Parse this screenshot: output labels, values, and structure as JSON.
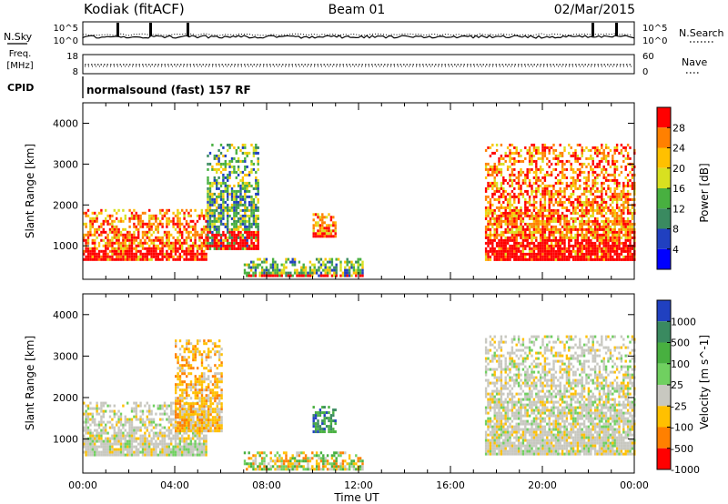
{
  "header": {
    "station": "Kodiak (fitACF)",
    "beam": "Beam 01",
    "date": "02/Mar/2015"
  },
  "noise_panel": {
    "left_label": "N.Sky",
    "right_label": "N.Search",
    "left_ticks": [
      "10^5",
      "10^0"
    ],
    "right_ticks": [
      "10^5",
      "10^0"
    ]
  },
  "freq_panel": {
    "left_label_1": "Freq.",
    "left_label_2": "[MHz]",
    "right_label": "Nave",
    "left_ticks": [
      "18",
      "8"
    ],
    "right_ticks": [
      "60",
      "0"
    ]
  },
  "cpid": {
    "label": "CPID",
    "text": "normalsound (fast) 157 RF"
  },
  "chart_data": [
    {
      "type": "heatmap",
      "title": "",
      "xlabel": "",
      "ylabel": "Slant Range [km]",
      "x_ticks": [
        "00:00",
        "04:00",
        "08:00",
        "12:00",
        "16:00",
        "20:00",
        "00:00"
      ],
      "xlim": [
        0,
        24
      ],
      "x_unit": "hours UT",
      "ylim": [
        180,
        4500
      ],
      "y_ticks": [
        1000,
        2000,
        3000,
        4000
      ],
      "colorbar": {
        "label": "Power [dB]",
        "ticks": [
          "28",
          "24",
          "20",
          "16",
          "12",
          "8",
          "4"
        ],
        "colors": [
          "#ff0000",
          "#ff8000",
          "#ffc000",
          "#d8e020",
          "#48b040",
          "#3a8a60",
          "#2040c0",
          "#0000ff"
        ]
      },
      "echo_regions": [
        {
          "start": 0.0,
          "end": 5.4,
          "range_low": 650,
          "range_high": 1900,
          "value": "high"
        },
        {
          "start": 5.4,
          "end": 7.6,
          "range_low": 900,
          "range_high": 3500,
          "value": "mid"
        },
        {
          "start": 7.0,
          "end": 12.2,
          "range_low": 250,
          "range_high": 700,
          "value": "mid"
        },
        {
          "start": 10.0,
          "end": 11.0,
          "range_low": 1200,
          "range_high": 1800,
          "value": "high"
        },
        {
          "start": 17.5,
          "end": 24.0,
          "range_low": 650,
          "range_high": 3500,
          "value": "high"
        }
      ]
    },
    {
      "type": "heatmap",
      "title": "",
      "xlabel": "Time UT",
      "ylabel": "Slant Range [km]",
      "x_ticks": [
        "00:00",
        "04:00",
        "08:00",
        "12:00",
        "16:00",
        "20:00",
        "00:00"
      ],
      "xlim": [
        0,
        24
      ],
      "x_unit": "hours UT",
      "ylim": [
        180,
        4500
      ],
      "y_ticks": [
        1000,
        2000,
        3000,
        4000
      ],
      "colorbar": {
        "label": "Velocity [m s^-1]",
        "ticks": [
          "1000",
          "500",
          "100",
          "25",
          "-25",
          "-100",
          "-500",
          "-1000"
        ],
        "colors": [
          "#2040c0",
          "#3a8a60",
          "#48b040",
          "#70d060",
          "#c8c8c0",
          "#ffc000",
          "#ff8000",
          "#ff0000"
        ]
      },
      "echo_regions": [
        {
          "start": 0.0,
          "end": 5.4,
          "range_low": 650,
          "range_high": 1900,
          "value": "near-zero"
        },
        {
          "start": 4.0,
          "end": 6.0,
          "range_low": 1200,
          "range_high": 3400,
          "value": "negative"
        },
        {
          "start": 7.0,
          "end": 12.2,
          "range_low": 250,
          "range_high": 700,
          "value": "mixed"
        },
        {
          "start": 10.0,
          "end": 11.0,
          "range_low": 1200,
          "range_high": 1800,
          "value": "positive"
        },
        {
          "start": 17.5,
          "end": 24.0,
          "range_low": 650,
          "range_high": 3500,
          "value": "near-zero"
        }
      ]
    }
  ]
}
